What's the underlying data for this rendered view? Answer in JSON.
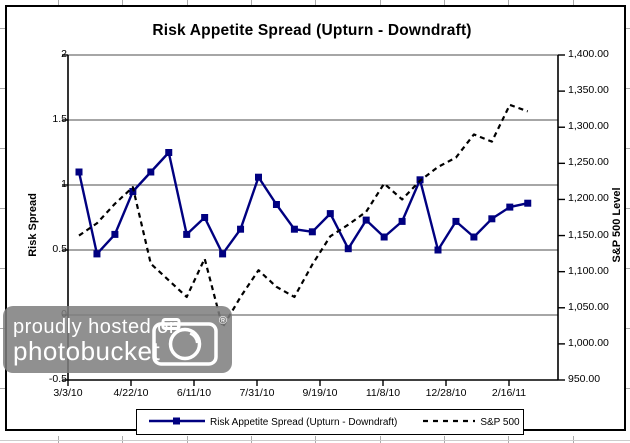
{
  "chart": {
    "title": "Risk Appetite Spread (Upturn - Downdraft)",
    "left_axis_title": "Risk Spread",
    "right_axis_title": "S&P 500 Level"
  },
  "legend": {
    "series1": "Risk Appetite Spread (Upturn - Downdraft)",
    "series2": "S&P 500"
  },
  "watermark": {
    "line1": "proudly hosted on",
    "line2": "photobucket",
    "registered": "®",
    "camera_icon": "camera-icon"
  },
  "colors": {
    "spread_line": "#000080",
    "sp500_line": "#000000",
    "gridline": "#4d4d4d",
    "axis": "#000000",
    "watermark_bg": "#7e7e7e"
  },
  "chart_data": {
    "type": "line",
    "title": "Risk Appetite Spread (Upturn - Downdraft)",
    "x_tick_labels": [
      "3/3/10",
      "4/22/10",
      "6/11/10",
      "7/31/10",
      "9/19/10",
      "11/8/10",
      "12/28/10",
      "2/16/11"
    ],
    "left_axis": {
      "label": "Risk Spread",
      "ticks": [
        "2",
        "1.5",
        "1",
        "0.5",
        "0",
        "-0.5"
      ],
      "range": [
        -0.5,
        2
      ]
    },
    "right_axis": {
      "label": "S&P 500 Level",
      "ticks": [
        "1,400.00",
        "1,350.00",
        "1,300.00",
        "1,250.00",
        "1,200.00",
        "1,150.00",
        "1,100.00",
        "1,050.00",
        "1,000.00",
        "950.00"
      ],
      "range": [
        950,
        1400
      ]
    },
    "grid": "horizontal",
    "legend_position": "bottom",
    "series": [
      {
        "name": "Risk Appetite Spread (Upturn - Downdraft)",
        "axis": "left",
        "style": "solid",
        "marker": "square",
        "color": "#000080",
        "values": [
          1.1,
          0.47,
          0.62,
          0.95,
          1.1,
          1.25,
          0.62,
          0.75,
          0.47,
          0.66,
          1.06,
          0.85,
          0.66,
          0.64,
          0.78,
          0.51,
          0.73,
          0.6,
          0.72,
          1.04,
          0.5,
          0.72,
          0.6,
          0.74,
          0.83,
          0.86
        ]
      },
      {
        "name": "S&P 500",
        "axis": "right",
        "style": "dashed",
        "marker": "none",
        "color": "#000000",
        "values": [
          1150,
          1167,
          1194,
          1217,
          1111,
          1088,
          1065,
          1118,
          1023,
          1065,
          1102,
          1079,
          1065,
          1110,
          1149,
          1165,
          1183,
          1222,
          1200,
          1226,
          1245,
          1258,
          1290,
          1280,
          1331,
          1322
        ]
      }
    ]
  }
}
